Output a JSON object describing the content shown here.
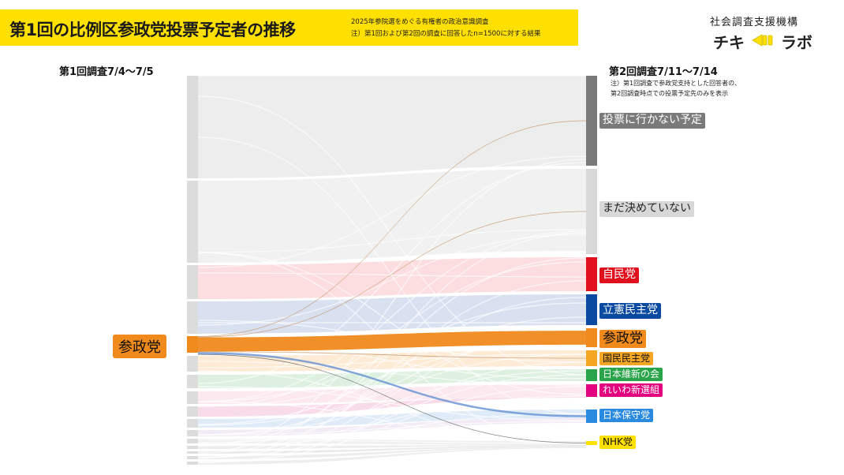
{
  "header": {
    "title": "第1回の比例区参政党投票予定者の推移",
    "subtitle_line1": "2025年参院選をめぐる有権者の政治意識調査",
    "subtitle_line2": "注）第1回および第2回の調査に回答したn=1500に対する結果"
  },
  "brand": {
    "org": "社会調査支援機構",
    "logo_left": "チキ",
    "logo_right": "ラボ",
    "accent": "#ffe000"
  },
  "chart_data": {
    "type": "sankey",
    "source_header": "第1回調査7/4〜7/5",
    "target_header": "第2回調査7/11〜7/14",
    "note_line1": "注）第1回調査で参政党支持とした回答者の、",
    "note_line2": "第2回調査時点での投票予定先のみを表示",
    "source_label": "参政党",
    "source_color": "#f08a1c",
    "target_nodes": [
      {
        "name": "投票に行かない予定",
        "color": "#7a7a7a",
        "text_color": "#ffffff",
        "share": 0.005
      },
      {
        "name": "まだ決めていない",
        "color": "#d8d8d8",
        "text_color": "#222222",
        "share": 0.005
      },
      {
        "name": "自民党",
        "color": "#e0101e",
        "text_color": "#ffffff",
        "share": 0.0
      },
      {
        "name": "立憲民主党",
        "color": "#0a4aa0",
        "text_color": "#ffffff",
        "share": 0.0
      },
      {
        "name": "参政党",
        "color": "#f08a1c",
        "text_color": "#111111",
        "share": 0.85
      },
      {
        "name": "国民民主党",
        "color": "#f5a623",
        "text_color": "#111111",
        "share": 0.005
      },
      {
        "name": "日本維新の会",
        "color": "#2aa44a",
        "text_color": "#ffffff",
        "share": 0.0
      },
      {
        "name": "れいわ新選組",
        "color": "#e3007f",
        "text_color": "#ffffff",
        "share": 0.0
      },
      {
        "name": "日本保守党",
        "color": "#2a8ae0",
        "text_color": "#ffffff",
        "share": 0.12
      },
      {
        "name": "NHK党",
        "color": "#ffe000",
        "text_color": "#111111",
        "share": 0.015
      }
    ]
  }
}
